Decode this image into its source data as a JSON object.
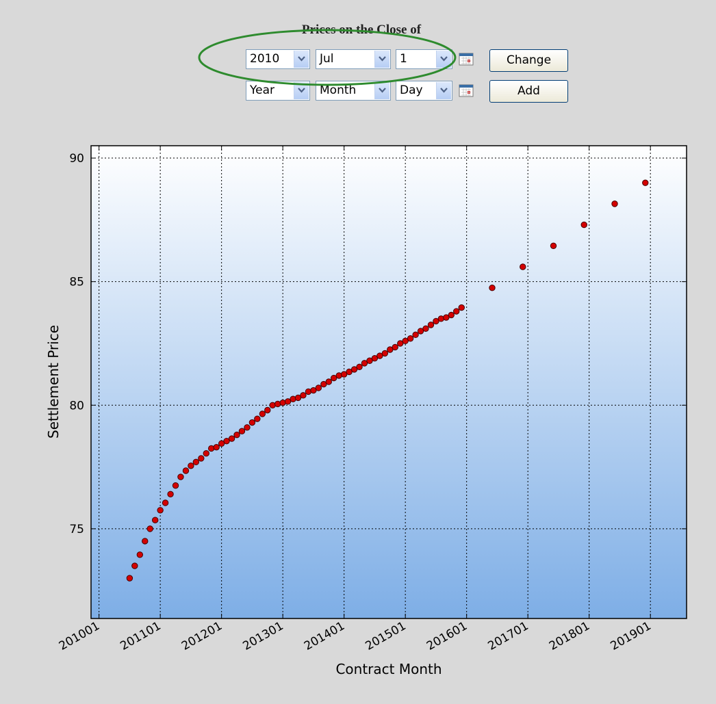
{
  "form": {
    "title": "Prices on the Close of",
    "rows": [
      {
        "year": "2010",
        "month": "Jul",
        "day": "1",
        "button": "Change"
      },
      {
        "year": "Year",
        "month": "Month",
        "day": "Day",
        "button": "Add"
      }
    ]
  },
  "chart_data": {
    "type": "scatter",
    "x_label": "Contract Month",
    "y_label": "Settlement Price",
    "color": "#d40000",
    "grid": true,
    "x": [
      2010.5,
      2010.583,
      2010.667,
      2010.75,
      2010.833,
      2010.917,
      2011,
      2011.083,
      2011.167,
      2011.25,
      2011.333,
      2011.417,
      2011.5,
      2011.583,
      2011.667,
      2011.75,
      2011.833,
      2011.917,
      2012,
      2012.083,
      2012.167,
      2012.25,
      2012.333,
      2012.417,
      2012.5,
      2012.583,
      2012.667,
      2012.75,
      2012.833,
      2012.917,
      2013,
      2013.083,
      2013.167,
      2013.25,
      2013.333,
      2013.417,
      2013.5,
      2013.583,
      2013.667,
      2013.75,
      2013.833,
      2013.917,
      2014,
      2014.083,
      2014.167,
      2014.25,
      2014.333,
      2014.417,
      2014.5,
      2014.583,
      2014.667,
      2014.75,
      2014.833,
      2014.917,
      2015,
      2015.083,
      2015.167,
      2015.25,
      2015.333,
      2015.417,
      2015.5,
      2015.583,
      2015.667,
      2015.75,
      2015.833,
      2015.917,
      2016.417,
      2016.917,
      2017.417,
      2017.917,
      2018.417,
      2018.917
    ],
    "values": [
      73.0,
      73.5,
      73.95,
      74.5,
      75.0,
      75.35,
      75.75,
      76.05,
      76.4,
      76.75,
      77.1,
      77.35,
      77.55,
      77.7,
      77.85,
      78.05,
      78.25,
      78.3,
      78.45,
      78.55,
      78.65,
      78.8,
      78.95,
      79.1,
      79.3,
      79.45,
      79.65,
      79.8,
      80.0,
      80.05,
      80.1,
      80.15,
      80.25,
      80.3,
      80.4,
      80.55,
      80.6,
      80.7,
      80.85,
      80.95,
      81.1,
      81.2,
      81.25,
      81.35,
      81.45,
      81.55,
      81.7,
      81.8,
      81.9,
      82.0,
      82.1,
      82.25,
      82.35,
      82.5,
      82.6,
      82.7,
      82.85,
      83.0,
      83.1,
      83.25,
      83.4,
      83.5,
      83.55,
      83.65,
      83.8,
      83.95,
      84.75,
      85.6,
      86.45,
      87.3,
      88.15,
      89.0
    ],
    "xlim": [
      2009.87,
      2019.59
    ],
    "xticks": [
      {
        "value": 2010,
        "label": "201001"
      },
      {
        "value": 2011,
        "label": "201101"
      },
      {
        "value": 2012,
        "label": "201201"
      },
      {
        "value": 2013,
        "label": "201301"
      },
      {
        "value": 2014,
        "label": "201401"
      },
      {
        "value": 2015,
        "label": "201501"
      },
      {
        "value": 2016,
        "label": "201601"
      },
      {
        "value": 2017,
        "label": "201701"
      },
      {
        "value": 2018,
        "label": "201801"
      },
      {
        "value": 2019,
        "label": "201901"
      }
    ],
    "ylim": [
      71.37,
      90.5
    ],
    "yticks": [
      75,
      80,
      85,
      90
    ]
  }
}
